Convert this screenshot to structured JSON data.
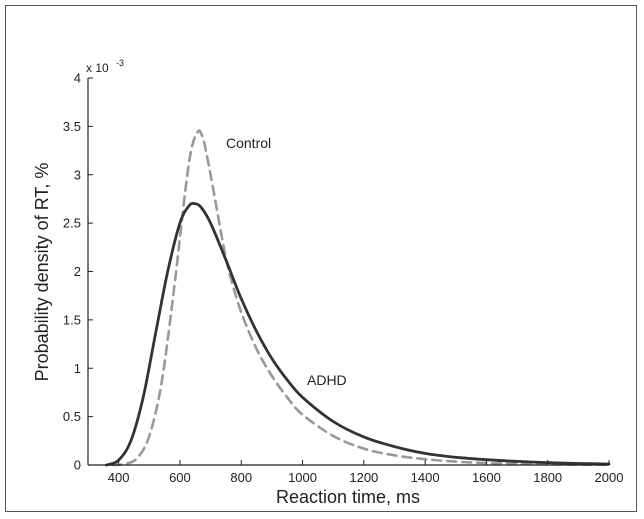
{
  "chart_data": {
    "type": "line",
    "xlabel": "Reaction time, ms",
    "ylabel": "Probability density of RT, %",
    "y_scale_note": "x 10",
    "y_scale_exponent": "-3",
    "xlim": [
      300,
      2000
    ],
    "ylim": [
      0,
      4
    ],
    "xticks": [
      400,
      600,
      800,
      1000,
      1200,
      1400,
      1600,
      1800,
      2000
    ],
    "yticks": [
      0,
      0.5,
      1,
      1.5,
      2,
      2.5,
      3,
      3.5,
      4
    ],
    "xtick_labels": [
      "400",
      "600",
      "800",
      "1000",
      "1200",
      "1400",
      "1600",
      "1800",
      "2000"
    ],
    "ytick_labels": [
      "0",
      "0.5",
      "1",
      "1.5",
      "2",
      "2.5",
      "3",
      "3.5",
      "4"
    ],
    "grid": false,
    "series": [
      {
        "name": "Control",
        "style": "dashed",
        "color": "#999999",
        "x": [
          380,
          420,
          460,
          500,
          540,
          580,
          620,
          640,
          660,
          670,
          680,
          700,
          720,
          740,
          760,
          800,
          850,
          900,
          950,
          1000,
          1100,
          1200,
          1300,
          1400,
          1500,
          1600,
          1700,
          1800,
          1900,
          2000
        ],
        "y": [
          0.0,
          0.01,
          0.07,
          0.3,
          0.85,
          1.8,
          2.9,
          3.3,
          3.45,
          3.42,
          3.32,
          3.0,
          2.65,
          2.3,
          2.0,
          1.58,
          1.2,
          0.92,
          0.7,
          0.52,
          0.3,
          0.17,
          0.1,
          0.06,
          0.035,
          0.02,
          0.012,
          0.007,
          0.004,
          0.002
        ]
      },
      {
        "name": "ADHD",
        "style": "solid",
        "color": "#333333",
        "x": [
          360,
          400,
          440,
          480,
          520,
          560,
          600,
          630,
          650,
          670,
          700,
          750,
          800,
          850,
          900,
          950,
          1000,
          1100,
          1200,
          1300,
          1400,
          1500,
          1600,
          1700,
          1800,
          1900,
          2000
        ],
        "y": [
          0.0,
          0.05,
          0.25,
          0.7,
          1.35,
          2.0,
          2.5,
          2.68,
          2.7,
          2.66,
          2.5,
          2.12,
          1.72,
          1.38,
          1.1,
          0.88,
          0.7,
          0.45,
          0.29,
          0.19,
          0.12,
          0.08,
          0.055,
          0.037,
          0.025,
          0.016,
          0.01
        ]
      }
    ]
  }
}
